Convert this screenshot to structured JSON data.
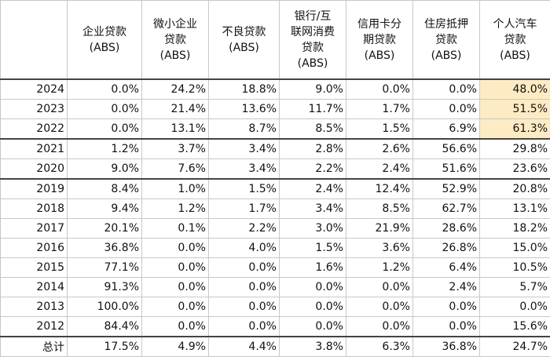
{
  "table": {
    "header": [
      "",
      "企业贷款\n(ABS)",
      "微小企业\n贷款\n(ABS)",
      "不良贷款\n(ABS)",
      "银行/互\n联网消费\n贷款\n(ABS)",
      "信用卡分\n期贷款\n(ABS)",
      "住房抵押\n贷款\n(ABS)",
      "个人汽车\n贷款\n(ABS)"
    ],
    "rows": [
      [
        "2024",
        "0.0%",
        "24.2%",
        "18.8%",
        "9.0%",
        "0.0%",
        "0.0%",
        "48.0%"
      ],
      [
        "2023",
        "0.0%",
        "21.4%",
        "13.6%",
        "11.7%",
        "1.7%",
        "0.0%",
        "51.5%"
      ],
      [
        "2022",
        "0.0%",
        "13.1%",
        "8.7%",
        "8.5%",
        "1.5%",
        "6.9%",
        "61.3%"
      ],
      [
        "2021",
        "1.2%",
        "3.7%",
        "3.4%",
        "2.8%",
        "2.6%",
        "56.6%",
        "29.8%"
      ],
      [
        "2020",
        "9.0%",
        "7.6%",
        "3.4%",
        "2.2%",
        "2.4%",
        "51.6%",
        "23.6%"
      ],
      [
        "2019",
        "8.4%",
        "1.0%",
        "1.5%",
        "2.4%",
        "12.4%",
        "52.9%",
        "20.8%"
      ],
      [
        "2018",
        "9.4%",
        "1.2%",
        "1.7%",
        "3.4%",
        "8.5%",
        "62.7%",
        "13.1%"
      ],
      [
        "2017",
        "20.1%",
        "0.1%",
        "2.2%",
        "3.0%",
        "21.9%",
        "28.6%",
        "18.2%"
      ],
      [
        "2016",
        "36.8%",
        "0.0%",
        "4.0%",
        "1.5%",
        "3.6%",
        "26.8%",
        "15.0%"
      ],
      [
        "2015",
        "77.1%",
        "0.0%",
        "0.0%",
        "1.6%",
        "1.2%",
        "6.4%",
        "10.5%"
      ],
      [
        "2014",
        "91.3%",
        "0.0%",
        "0.0%",
        "0.0%",
        "0.0%",
        "2.4%",
        "5.7%"
      ],
      [
        "2013",
        "100.0%",
        "0.0%",
        "0.0%",
        "0.0%",
        "0.0%",
        "0.0%",
        "0.0%"
      ],
      [
        "2012",
        "84.4%",
        "0.0%",
        "0.0%",
        "0.0%",
        "0.0%",
        "0.0%",
        "15.6%"
      ],
      [
        "总计",
        "17.5%",
        "4.9%",
        "4.4%",
        "3.8%",
        "6.3%",
        "36.8%",
        "24.7%"
      ]
    ]
  }
}
